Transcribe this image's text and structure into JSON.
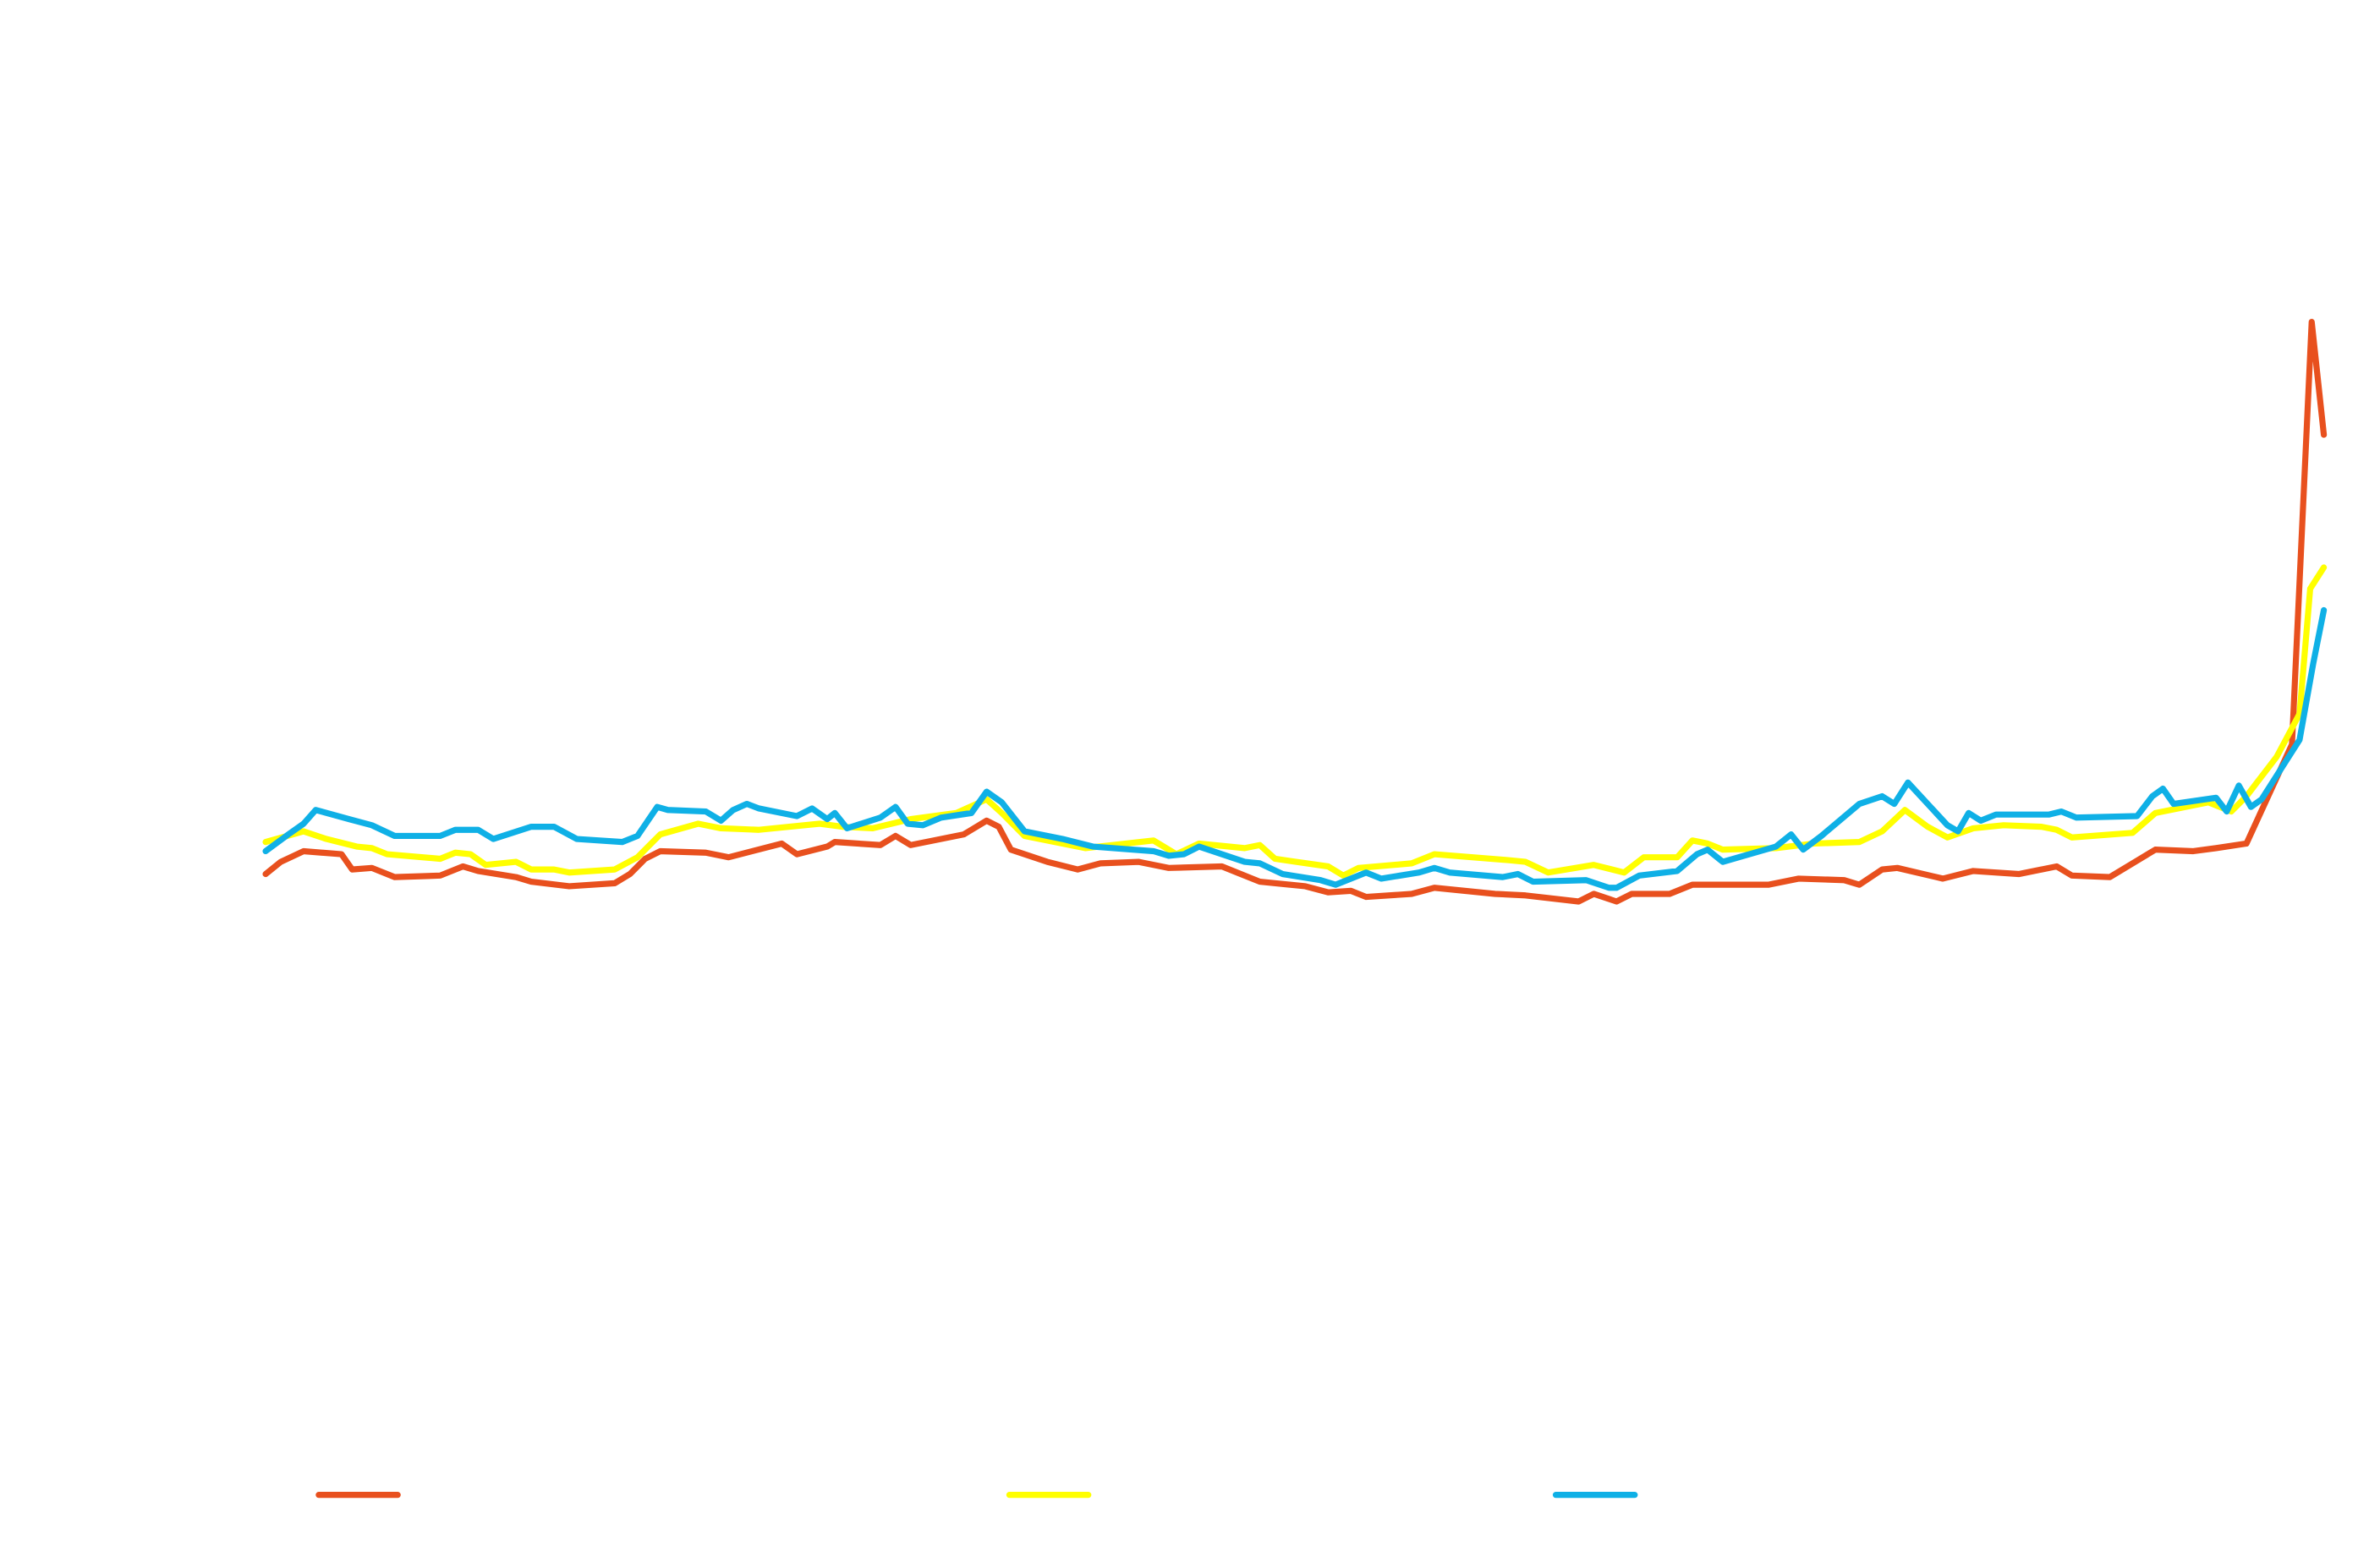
{
  "chart_data": {
    "type": "line",
    "xlim": [
      0,
      1568
    ],
    "ylim": [
      0,
      1024
    ],
    "series": [
      {
        "color": "#e8501e",
        "x": [
          175,
          185,
          200,
          225,
          232,
          245,
          260,
          290,
          305,
          315,
          340,
          350,
          375,
          405,
          415,
          425,
          435,
          465,
          480,
          515,
          525,
          545,
          550,
          580,
          590,
          600,
          635,
          650,
          658,
          666,
          690,
          710,
          725,
          750,
          770,
          805,
          815,
          830,
          860,
          875,
          890,
          900,
          930,
          945,
          985,
          1005,
          1040,
          1050,
          1065,
          1075,
          1100,
          1115,
          1165,
          1185,
          1215,
          1225,
          1240,
          1250,
          1280,
          1300,
          1330,
          1355,
          1365,
          1390,
          1420,
          1445,
          1460,
          1480,
          1510,
          1523,
          1531
        ],
        "values": [
          451,
          459,
          466,
          464,
          454,
          455,
          449,
          450,
          456,
          453,
          449,
          446,
          443,
          445,
          451,
          461,
          466,
          465,
          462,
          471,
          464,
          469,
          472,
          470,
          476,
          470,
          477,
          486,
          482,
          467,
          459,
          454,
          458,
          459,
          455,
          456,
          452,
          446,
          443,
          439,
          440,
          436,
          438,
          442,
          438,
          437,
          433,
          438,
          433,
          438,
          438,
          444,
          444,
          448,
          447,
          444,
          454,
          455,
          448,
          453,
          451,
          456,
          450,
          449,
          467,
          466,
          468,
          471,
          536,
          813,
          739
        ]
      },
      {
        "color": "#ffff00",
        "x": [
          175,
          200,
          215,
          235,
          245,
          255,
          290,
          300,
          310,
          320,
          340,
          350,
          365,
          375,
          405,
          420,
          435,
          460,
          475,
          500,
          540,
          555,
          575,
          600,
          630,
          650,
          660,
          675,
          700,
          715,
          760,
          775,
          790,
          820,
          830,
          840,
          875,
          885,
          895,
          930,
          945,
          995,
          1005,
          1020,
          1050,
          1070,
          1083,
          1105,
          1115,
          1125,
          1135,
          1170,
          1195,
          1225,
          1240,
          1255,
          1270,
          1283,
          1300,
          1320,
          1345,
          1355,
          1365,
          1405,
          1420,
          1455,
          1470,
          1480,
          1500,
          1515,
          1522,
          1531
        ],
        "values": [
          472,
          479,
          474,
          469,
          468,
          464,
          461,
          465,
          464,
          457,
          459,
          454,
          454,
          452,
          454,
          462,
          477,
          484,
          481,
          480,
          484,
          482,
          481,
          487,
          491,
          500,
          491,
          476,
          471,
          468,
          473,
          464,
          471,
          468,
          470,
          461,
          456,
          450,
          455,
          458,
          464,
          460,
          459,
          452,
          457,
          452,
          462,
          462,
          473,
          471,
          467,
          468,
          471,
          472,
          479,
          493,
          482,
          475,
          481,
          483,
          482,
          480,
          475,
          478,
          491,
          498,
          492,
          502,
          528,
          556,
          638,
          652
        ]
      },
      {
        "color": "#0fb0e6",
        "x": [
          175,
          190,
          200,
          208,
          230,
          245,
          260,
          290,
          300,
          315,
          325,
          350,
          365,
          380,
          410,
          420,
          433,
          440,
          465,
          475,
          483,
          492,
          500,
          525,
          535,
          545,
          550,
          558,
          580,
          590,
          598,
          608,
          620,
          640,
          650,
          660,
          675,
          700,
          720,
          760,
          770,
          780,
          790,
          820,
          830,
          845,
          870,
          880,
          900,
          910,
          935,
          945,
          955,
          990,
          1000,
          1010,
          1045,
          1060,
          1065,
          1080,
          1105,
          1118,
          1125,
          1135,
          1170,
          1180,
          1188,
          1200,
          1225,
          1240,
          1248,
          1257,
          1283,
          1290,
          1297,
          1305,
          1315,
          1350,
          1358,
          1368,
          1408,
          1418,
          1425,
          1432,
          1460,
          1467,
          1475,
          1483,
          1490,
          1515,
          1524,
          1531
        ],
        "values": [
          466,
          477,
          484,
          493,
          487,
          483,
          476,
          476,
          480,
          480,
          474,
          482,
          482,
          474,
          472,
          476,
          495,
          493,
          492,
          486,
          493,
          497,
          494,
          489,
          494,
          487,
          491,
          481,
          488,
          495,
          484,
          483,
          488,
          491,
          505,
          498,
          479,
          474,
          469,
          466,
          463,
          464,
          469,
          459,
          458,
          451,
          447,
          444,
          452,
          448,
          452,
          455,
          452,
          449,
          451,
          446,
          447,
          442,
          442,
          450,
          453,
          464,
          467,
          459,
          469,
          477,
          467,
          476,
          497,
          502,
          497,
          511,
          483,
          479,
          491,
          486,
          490,
          490,
          492,
          488,
          489,
          502,
          507,
          497,
          501,
          492,
          509,
          495,
          500,
          539,
          589,
          624
        ]
      }
    ]
  }
}
